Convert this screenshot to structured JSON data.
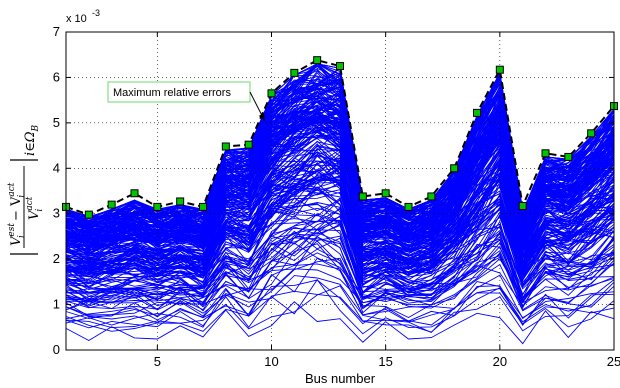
{
  "chart_data": {
    "type": "line",
    "xlabel": "Bus number",
    "ylabel": {
      "num_1": "V",
      "num_1_sub": "i",
      "num_1_sup": "est",
      "num_minus": " − V",
      "num_2_sub": "i",
      "num_2_sup": "act",
      "den": "V",
      "den_sub": "i",
      "den_sup": "act",
      "tail": "i∈Ω",
      "tail_sub": "B"
    },
    "y_exponent_label": "x 10",
    "y_exponent_power": "-3",
    "xlim": [
      1,
      25
    ],
    "ylim": [
      0,
      7
    ],
    "x_ticks": [
      5,
      10,
      15,
      20,
      25
    ],
    "y_ticks": [
      0,
      1,
      2,
      3,
      4,
      5,
      6,
      7
    ],
    "x_tick_labels": [
      "5",
      "10",
      "15",
      "20",
      "25"
    ],
    "y_tick_labels": [
      "0",
      "1",
      "2",
      "3",
      "4",
      "5",
      "6",
      "7"
    ],
    "grid": true,
    "colors": {
      "trials": "#0000ff",
      "max_line": "#000000",
      "marker_fill": "#00c400",
      "marker_edge": "#000000",
      "annotation_border": "#6fd86f"
    },
    "series": [
      {
        "name": "Maximum relative errors",
        "x": [
          1,
          2,
          3,
          4,
          5,
          6,
          7,
          8,
          9,
          10,
          11,
          12,
          13,
          14,
          15,
          16,
          17,
          18,
          19,
          20,
          21,
          22,
          23,
          24,
          25
        ],
        "values": [
          3.15,
          2.98,
          3.2,
          3.45,
          3.15,
          3.27,
          3.15,
          4.48,
          4.52,
          5.65,
          6.1,
          6.38,
          6.25,
          3.38,
          3.45,
          3.15,
          3.38,
          4.0,
          5.22,
          6.17,
          3.17,
          4.33,
          4.25,
          4.77,
          5.37
        ]
      }
    ],
    "trial_envelope": {
      "x": [
        1,
        2,
        3,
        4,
        5,
        6,
        7,
        8,
        9,
        10,
        11,
        12,
        13,
        14,
        15,
        16,
        17,
        18,
        19,
        20,
        21,
        22,
        23,
        24,
        25
      ],
      "upper": [
        3.1,
        2.95,
        3.1,
        3.3,
        3.1,
        3.2,
        3.1,
        4.4,
        4.45,
        5.6,
        6.05,
        6.3,
        6.2,
        3.3,
        3.35,
        3.1,
        3.3,
        3.95,
        5.15,
        6.1,
        3.1,
        4.25,
        4.2,
        4.7,
        5.3
      ],
      "lower": [
        0.25,
        0.2,
        0.22,
        0.25,
        0.2,
        0.35,
        0.15,
        0.45,
        0.05,
        0.35,
        0.45,
        0.6,
        0.5,
        0.1,
        0.3,
        0.2,
        0.15,
        0.35,
        0.45,
        0.6,
        0.12,
        0.45,
        0.25,
        0.4,
        0.5
      ],
      "trial_count": 260
    },
    "annotation": {
      "text": "Maximum relative errors",
      "points_to_x": 9.7
    }
  }
}
